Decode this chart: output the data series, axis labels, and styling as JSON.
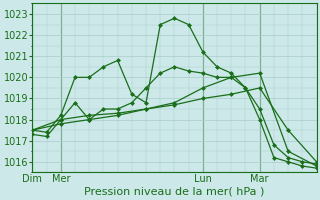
{
  "xlabel": "Pression niveau de la mer( hPa )",
  "bg_color": "#cce8e8",
  "grid_color": "#aacccc",
  "line_color": "#1a6e1a",
  "ylim": [
    1015.5,
    1023.5
  ],
  "xlim": [
    0,
    120
  ],
  "yticks": [
    1016,
    1017,
    1018,
    1019,
    1020,
    1021,
    1022,
    1023
  ],
  "day_labels": [
    "Dim",
    "Mer",
    "Lun",
    "Mar"
  ],
  "day_positions": [
    0,
    12,
    72,
    96
  ],
  "vlines": [
    0,
    12,
    72,
    96
  ],
  "series1": {
    "x": [
      0,
      6,
      12,
      18,
      24,
      30,
      36,
      42,
      48,
      54,
      60,
      66,
      72,
      78,
      84,
      90,
      96,
      102,
      108,
      114,
      120
    ],
    "y": [
      1017.5,
      1017.4,
      1018.2,
      1020.0,
      1020.0,
      1020.5,
      1020.8,
      1019.2,
      1018.8,
      1022.5,
      1022.8,
      1022.5,
      1021.2,
      1020.5,
      1020.2,
      1019.5,
      1018.0,
      1016.2,
      1016.0,
      1015.8,
      1015.7
    ]
  },
  "series2": {
    "x": [
      0,
      6,
      12,
      18,
      24,
      30,
      36,
      42,
      48,
      54,
      60,
      66,
      72,
      78,
      84,
      90,
      96,
      102,
      108,
      114,
      120
    ],
    "y": [
      1017.3,
      1017.2,
      1018.0,
      1018.8,
      1018.0,
      1018.5,
      1018.5,
      1018.8,
      1019.5,
      1020.2,
      1020.5,
      1020.3,
      1020.2,
      1020.0,
      1020.0,
      1019.5,
      1018.5,
      1016.8,
      1016.2,
      1016.0,
      1015.9
    ]
  },
  "series3": {
    "x": [
      0,
      12,
      24,
      36,
      48,
      60,
      72,
      84,
      96,
      108,
      120
    ],
    "y": [
      1017.5,
      1018.0,
      1018.2,
      1018.3,
      1018.5,
      1018.7,
      1019.0,
      1019.2,
      1019.5,
      1017.5,
      1016.0
    ]
  },
  "series4": {
    "x": [
      0,
      12,
      24,
      36,
      48,
      60,
      72,
      84,
      96,
      108,
      120
    ],
    "y": [
      1017.5,
      1017.8,
      1018.0,
      1018.2,
      1018.5,
      1018.8,
      1019.5,
      1020.0,
      1020.2,
      1016.5,
      1015.8
    ]
  }
}
